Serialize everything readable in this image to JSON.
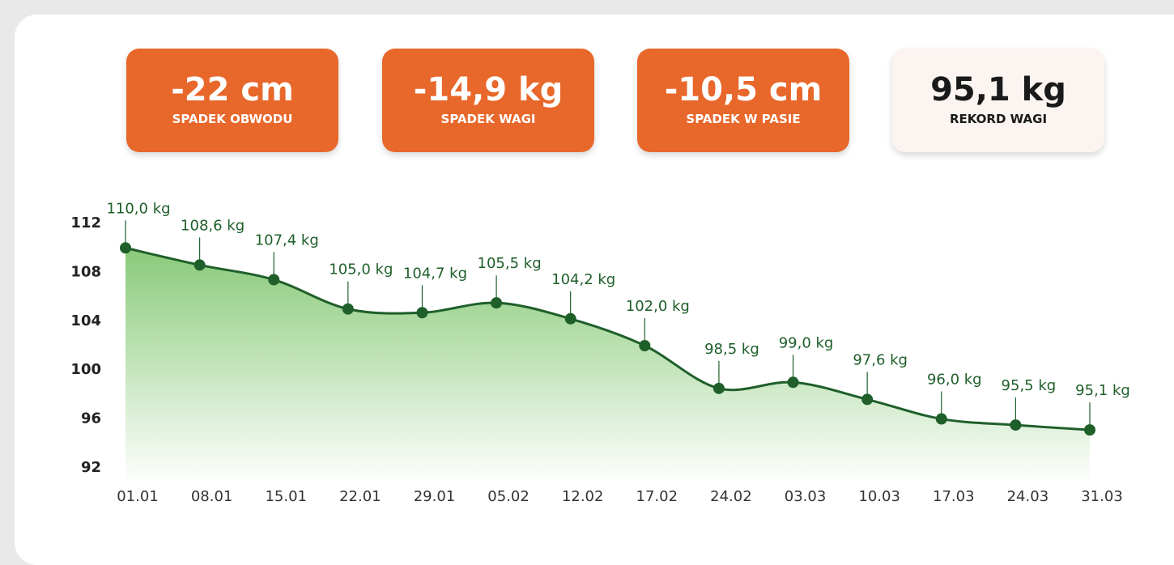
{
  "stats": [
    {
      "value": "-22 cm",
      "label": "SPADEK OBWODU"
    },
    {
      "value": "-14,9 kg",
      "label": "SPADEK WAGI"
    },
    {
      "value": "-10,5 cm",
      "label": "SPADEK W PASIE"
    },
    {
      "value": "95,1 kg",
      "label": "REKORD WAGI"
    }
  ],
  "chart_data": {
    "type": "area",
    "categories": [
      "01.01",
      "08.01",
      "15.01",
      "22.01",
      "29.01",
      "05.02",
      "12.02",
      "17.02",
      "24.02",
      "03.03",
      "10.03",
      "17.03",
      "24.03",
      "31.03"
    ],
    "values": [
      110.0,
      108.6,
      107.4,
      105.0,
      104.7,
      105.5,
      104.2,
      102.0,
      98.5,
      99.0,
      97.6,
      96.0,
      95.5,
      95.1
    ],
    "value_labels": [
      "110,0 kg",
      "108,6 kg",
      "107,4 kg",
      "105,0 kg",
      "104,7 kg",
      "105,5 kg",
      "104,2 kg",
      "102,0 kg",
      "98,5 kg",
      "99,0 kg",
      "97,6 kg",
      "96,0 kg",
      "95,5 kg",
      "95,1 kg"
    ],
    "color": "#1f5f2a",
    "ylim": [
      91,
      113
    ],
    "yticks": [
      112,
      108,
      104,
      100,
      96,
      92
    ]
  }
}
